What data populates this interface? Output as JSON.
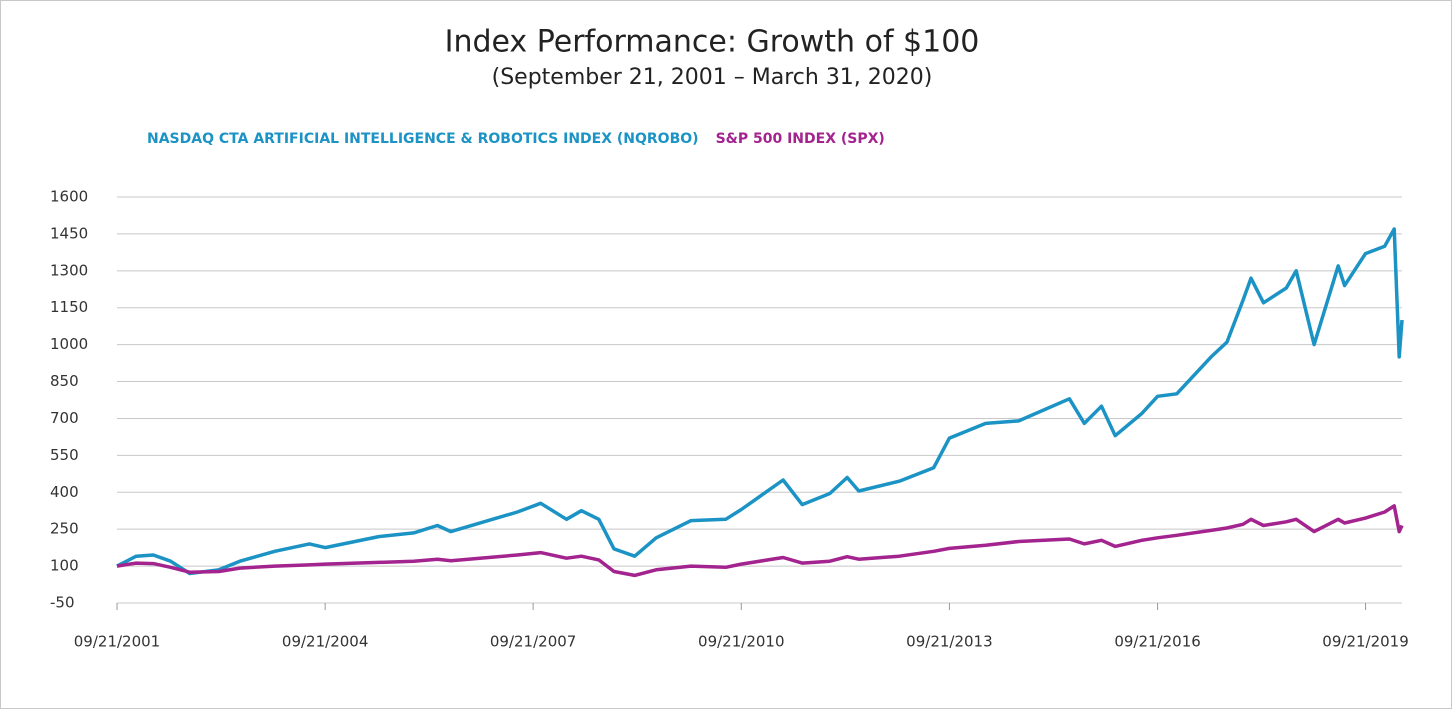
{
  "chart_data": {
    "type": "line",
    "title": "Index Performance: Growth of $100",
    "subtitle": "(September 21, 2001 – March 31, 2020)",
    "x": [
      "2001-09-21",
      "2001-12-31",
      "2002-03-31",
      "2002-06-30",
      "2002-10-09",
      "2003-03-11",
      "2003-06-30",
      "2003-12-31",
      "2004-06-30",
      "2004-09-21",
      "2005-06-30",
      "2005-12-31",
      "2006-05-05",
      "2006-07-15",
      "2007-06-30",
      "2007-10-31",
      "2008-03-15",
      "2008-06-01",
      "2008-09-01",
      "2008-11-20",
      "2009-03-09",
      "2009-06-30",
      "2009-12-31",
      "2010-07-01",
      "2010-09-21",
      "2011-04-29",
      "2011-08-08",
      "2011-12-31",
      "2012-04-01",
      "2012-06-01",
      "2012-12-31",
      "2013-06-30",
      "2013-09-21",
      "2014-03-31",
      "2014-09-21",
      "2015-06-15",
      "2015-09-01",
      "2015-12-01",
      "2016-02-11",
      "2016-06-30",
      "2016-09-21",
      "2016-12-31",
      "2017-06-30",
      "2017-09-21",
      "2017-12-15",
      "2018-01-26",
      "2018-04-02",
      "2018-07-31",
      "2018-09-21",
      "2018-12-24",
      "2019-04-30",
      "2019-06-03",
      "2019-09-21",
      "2019-12-31",
      "2020-02-19",
      "2020-03-16",
      "2020-03-31"
    ],
    "series": [
      {
        "name": "NASDAQ CTA ARTIFICIAL INTELLIGENCE & ROBOTICS INDEX (NQROBO)",
        "color": "#1b93c4",
        "values": [
          100,
          140,
          145,
          120,
          70,
          85,
          120,
          160,
          190,
          175,
          220,
          235,
          265,
          240,
          320,
          355,
          290,
          325,
          290,
          170,
          140,
          215,
          285,
          290,
          330,
          450,
          350,
          395,
          460,
          405,
          445,
          500,
          620,
          680,
          690,
          780,
          680,
          750,
          630,
          720,
          790,
          800,
          950,
          1010,
          1180,
          1270,
          1170,
          1230,
          1300,
          1000,
          1320,
          1240,
          1370,
          1400,
          1470,
          950,
          1100
        ]
      },
      {
        "name": "S&P 500 INDEX (SPX)",
        "color": "#a3238f",
        "values": [
          100,
          112,
          110,
          95,
          75,
          78,
          92,
          100,
          105,
          108,
          115,
          120,
          128,
          122,
          145,
          155,
          132,
          140,
          125,
          78,
          62,
          85,
          100,
          95,
          108,
          135,
          112,
          120,
          138,
          128,
          140,
          160,
          172,
          185,
          200,
          210,
          190,
          205,
          180,
          205,
          215,
          225,
          245,
          255,
          270,
          290,
          265,
          280,
          290,
          240,
          290,
          275,
          295,
          320,
          345,
          240,
          265
        ]
      }
    ],
    "xlim": [
      "2001-09-21",
      "2020-03-31"
    ],
    "xticks": [
      {
        "value": "2001-09-21",
        "label": "09/21/2001"
      },
      {
        "value": "2004-09-21",
        "label": "09/21/2004"
      },
      {
        "value": "2007-09-21",
        "label": "09/21/2007"
      },
      {
        "value": "2010-09-21",
        "label": "09/21/2010"
      },
      {
        "value": "2013-09-21",
        "label": "09/21/2013"
      },
      {
        "value": "2016-09-21",
        "label": "09/21/2016"
      },
      {
        "value": "2019-09-21",
        "label": "09/21/2019"
      }
    ],
    "ylim": [
      -50,
      1600
    ],
    "yticks": [
      -50,
      100,
      250,
      400,
      550,
      700,
      850,
      1000,
      1150,
      1300,
      1450,
      1600
    ],
    "grid": true
  }
}
